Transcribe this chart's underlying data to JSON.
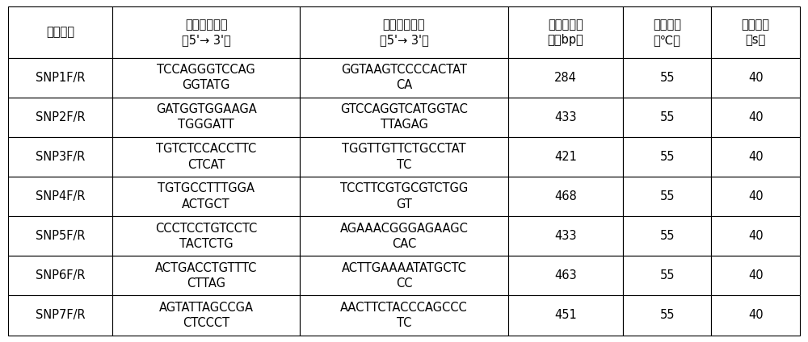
{
  "headers": [
    "引物编号",
    "正向引物序列\n（5'→ 3'）",
    "反向引物序列\n（5'→ 3'）",
    "扩增片段大\n小（bp）",
    "退火温度\n（℃）",
    "延伸时间\n（s）"
  ],
  "rows": [
    [
      "SNP1F/R",
      "TCCAGGGTCCAG\nGGTATG",
      "GGTAAGTCCCCACTAT\nCA",
      "284",
      "55",
      "40"
    ],
    [
      "SNP2F/R",
      "GATGGTGGAAGA\nTGGGATT",
      "GTCCAGGTCATGGTAC\nTTAGAG",
      "433",
      "55",
      "40"
    ],
    [
      "SNP3F/R",
      "TGTCTCCACCTTC\nCTCAT",
      "TGGTTGTTCTGCCTAT\nTC",
      "421",
      "55",
      "40"
    ],
    [
      "SNP4F/R",
      "TGTGCCTTTGGA\nACTGCT",
      "TCCTTCGTGCGTCTGG\nGT",
      "468",
      "55",
      "40"
    ],
    [
      "SNP5F/R",
      "CCCTCCTGTCCTC\nTACTCTG",
      "AGAAACGGGAGAAGC\nCAC",
      "433",
      "55",
      "40"
    ],
    [
      "SNP6F/R",
      "ACTGACCTGTTTC\nCTTAG",
      "ACTTGAAAATATGCTC\nCC",
      "463",
      "55",
      "40"
    ],
    [
      "SNP7F/R",
      "AGTATTAGCCGA\nCTCCCT",
      "AACTTCTACCCAGCCC\nTC",
      "451",
      "55",
      "40"
    ]
  ],
  "col_widths": [
    1.0,
    1.8,
    2.0,
    1.1,
    0.85,
    0.85
  ],
  "bg_color": "#ffffff",
  "border_color": "#000000",
  "text_color": "#000000",
  "fig_width": 10.0,
  "fig_height": 4.24,
  "dpi": 100
}
